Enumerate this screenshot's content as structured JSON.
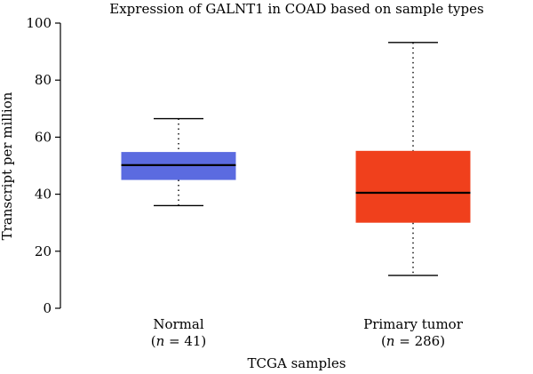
{
  "chart_data": {
    "type": "box",
    "title": "Expression of GALNT1 in COAD based on sample types",
    "xlabel": "TCGA samples",
    "ylabel": "Transcript per million",
    "ylim": [
      0,
      100
    ],
    "yticks": [
      0,
      20,
      40,
      60,
      80,
      100
    ],
    "grid": false,
    "groups": [
      {
        "label": "Normal",
        "n_label_prefix": "(",
        "n_label_var": "n",
        "n_label_rest": " = 41)",
        "color": "#5b6be0",
        "min": 36,
        "q1": 45,
        "median": 50.2,
        "q3": 54.8,
        "max": 66.5
      },
      {
        "label": "Primary tumor",
        "n_label_prefix": "(",
        "n_label_var": "n",
        "n_label_rest": " = 286)",
        "color": "#f0401c",
        "min": 11.5,
        "q1": 30,
        "median": 40.5,
        "q3": 55.2,
        "max": 93.2
      }
    ]
  }
}
